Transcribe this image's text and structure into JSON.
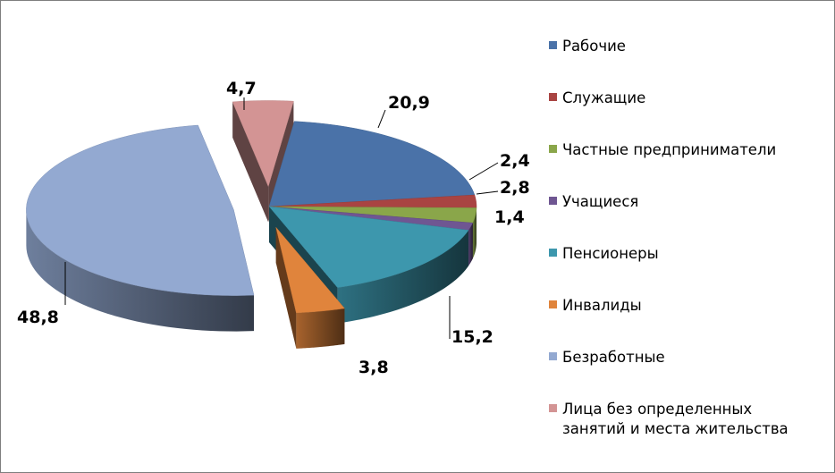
{
  "chart_data": {
    "type": "pie",
    "title": "",
    "categories": [
      "Рабочие",
      "Служащие",
      "Частные предприниматели",
      "Учащиеся",
      "Пенсионеры",
      "Инвалиды",
      "Безработные",
      "Лица без определенных\nзанятий  и места жительства"
    ],
    "values": [
      20.9,
      2.4,
      2.8,
      1.4,
      15.2,
      3.8,
      48.8,
      4.7
    ],
    "labels": [
      "20,9",
      "2,4",
      "2,8",
      "1,4",
      "15,2",
      "3,8",
      "48,8",
      "4,7"
    ],
    "colors": [
      "#4a72a8",
      "#a94442",
      "#8aa64a",
      "#6f5692",
      "#3d97ad",
      "#e0843c",
      "#93a9d1",
      "#d39494"
    ],
    "exploded": [
      false,
      false,
      false,
      false,
      false,
      true,
      true,
      true
    ],
    "legend_position": "right",
    "style": "3d exploded pie"
  }
}
